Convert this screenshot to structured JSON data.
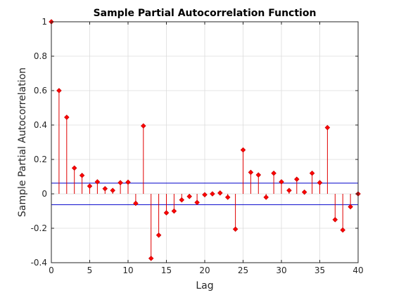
{
  "chart_data": {
    "type": "stem",
    "title": "Sample Partial Autocorrelation Function",
    "xlabel": "Lag",
    "ylabel": "Sample Partial Autocorrelation",
    "xlim": [
      0,
      40
    ],
    "ylim": [
      -0.4,
      1
    ],
    "xticks": [
      0,
      5,
      10,
      15,
      20,
      25,
      30,
      35,
      40
    ],
    "yticks": [
      -0.4,
      -0.2,
      0,
      0.2,
      0.4,
      0.6,
      0.8,
      1
    ],
    "xtick_labels": [
      "0",
      "5",
      "10",
      "15",
      "20",
      "25",
      "30",
      "35",
      "40"
    ],
    "ytick_labels": [
      "-0.4",
      "-0.2",
      "0",
      "0.2",
      "0.4",
      "0.6",
      "0.8",
      "1"
    ],
    "grid": true,
    "series": [
      {
        "x": [
          0,
          1,
          2,
          3,
          4,
          5,
          6,
          7,
          8,
          9,
          10,
          11,
          12,
          13,
          14,
          15,
          16,
          17,
          18,
          19,
          20,
          21,
          22,
          23,
          24,
          25,
          26,
          27,
          28,
          29,
          30,
          31,
          32,
          33,
          34,
          35,
          36,
          37,
          38,
          39,
          40
        ],
        "values": [
          1,
          0.6,
          0.445,
          0.15,
          0.107,
          0.045,
          0.07,
          0.03,
          0.02,
          0.065,
          0.068,
          -0.055,
          0.395,
          -0.375,
          -0.24,
          -0.11,
          -0.1,
          -0.035,
          -0.015,
          -0.05,
          -0.005,
          0,
          0.005,
          -0.02,
          -0.205,
          0.255,
          0.125,
          0.11,
          -0.02,
          0.12,
          0.07,
          0.02,
          0.085,
          0.01,
          0.12,
          0.065,
          0.385,
          -0.15,
          -0.21,
          -0.075,
          0
        ]
      }
    ],
    "confidence_bounds": [
      0.0625,
      -0.0625
    ],
    "colors": {
      "stem": "#e00000",
      "marker": "#ff0000",
      "bounds": "#0000cc",
      "grid": "#dcdcdc",
      "axis": "#262626"
    }
  }
}
